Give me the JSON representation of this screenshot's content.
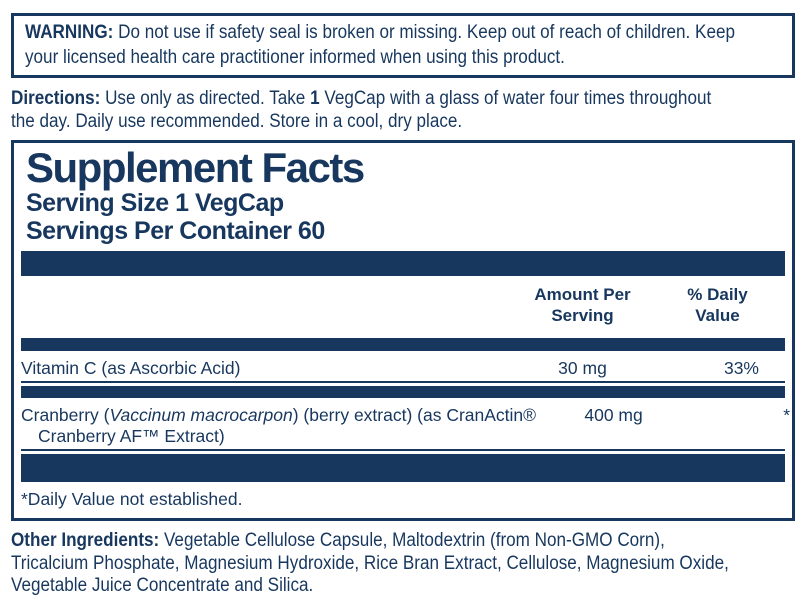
{
  "colors": {
    "navy": "#17375E",
    "background": "#FFFFFF"
  },
  "warning": {
    "label": "WARNING:",
    "line1": "Do not use if safety seal is broken or missing. Keep out of reach of children. Keep",
    "line2": "your licensed health care practitioner informed when using this product."
  },
  "directions": {
    "label": "Directions:",
    "line1_before_qty": "Use only as directed. Take",
    "quantity": "1",
    "line1_after_qty": "VegCap with a glass of water four times throughout",
    "line2": "the day. Daily use recommended. Store in a cool, dry place."
  },
  "supplement_facts": {
    "title": "Supplement Facts",
    "serving_size": "Serving Size 1 VegCap",
    "servings_per_container": "Servings Per Container 60",
    "header": {
      "amount_line1": "Amount Per",
      "amount_line2": "Serving",
      "dv_line1": "% Daily",
      "dv_line2": "Value"
    },
    "rows": [
      {
        "name": "Vitamin C (as Ascorbic Acid)",
        "amount": "30 mg",
        "dv": "33%"
      },
      {
        "name_pre": "Cranberry (",
        "name_species": "Vaccinum macrocarpon",
        "name_post": ") (berry extract) (as CranActin®",
        "name_line2": "Cranberry AF™ Extract)",
        "amount": "400 mg",
        "dv": "*"
      }
    ],
    "footnote": "*Daily Value not established."
  },
  "other_ingredients": {
    "label": "Other Ingredients:",
    "line1": "Vegetable Cellulose Capsule, Maltodextrin (from Non-GMO Corn),",
    "line2": "Tricalcium Phosphate, Magnesium Hydroxide, Rice Bran Extract, Cellulose, Magnesium Oxide,",
    "line3": "Vegetable Juice Concentrate and Silica."
  }
}
